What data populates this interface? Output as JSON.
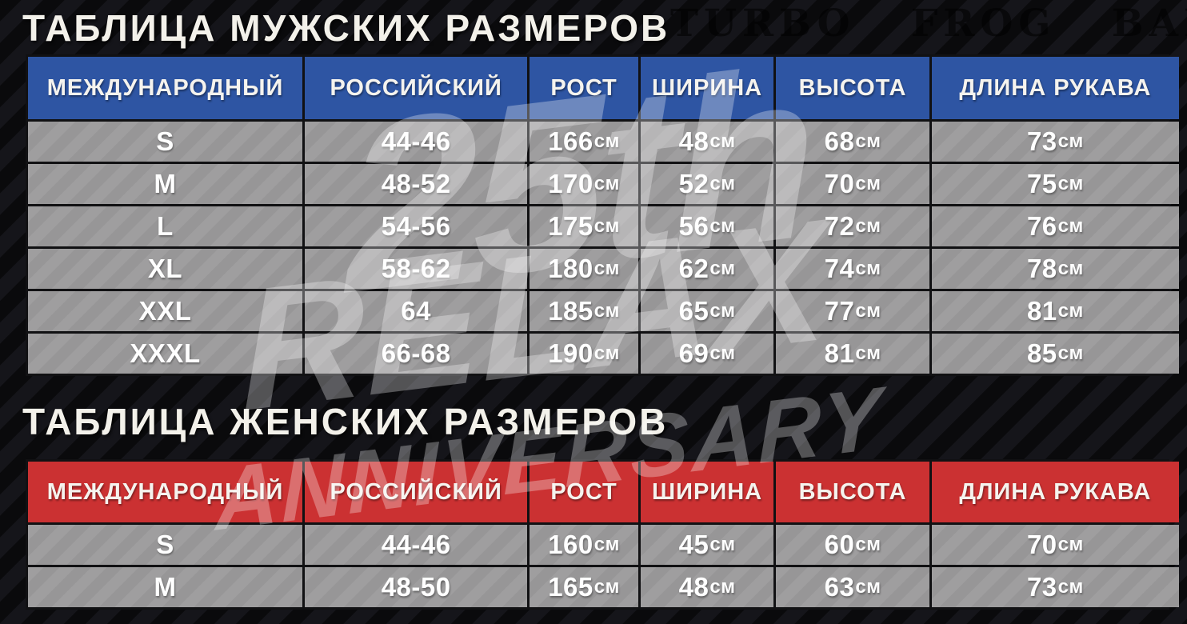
{
  "background": {
    "stencil_text": "TURBO FROG BAN",
    "base_color": "#0a0a0c",
    "stripe_color": "#15151a"
  },
  "watermark": {
    "line1": "25th",
    "line2": "RELAX",
    "line3": "ANNIVERSARY",
    "color": "#ffffff"
  },
  "colors": {
    "men_header_bg": "#2e55a3",
    "women_header_bg": "#cb3132",
    "row_bg": "#9a999a",
    "border": "#111113",
    "title_text": "#f3f1ea",
    "cell_text": "#ffffff"
  },
  "unit_suffix": "см",
  "tables": [
    {
      "id": "men",
      "title": "ТАБЛИЦА МУЖСКИХ РАЗМЕРОВ",
      "accent": "#2e55a3",
      "columns": [
        "МЕЖДУНАРОДНЫЙ",
        "РОССИЙСКИЙ",
        "РОСТ",
        "ШИРИНА",
        "ВЫСОТА",
        "ДЛИНА РУКАВА"
      ],
      "rows": [
        [
          "S",
          "44-46",
          "166см",
          "48см",
          "68см",
          "73см"
        ],
        [
          "M",
          "48-52",
          "170см",
          "52см",
          "70см",
          "75см"
        ],
        [
          "L",
          "54-56",
          "175см",
          "56см",
          "72см",
          "76см"
        ],
        [
          "XL",
          "58-62",
          "180см",
          "62см",
          "74см",
          "78см"
        ],
        [
          "XXL",
          "64",
          "185см",
          "65см",
          "77см",
          "81см"
        ],
        [
          "XXXL",
          "66-68",
          "190см",
          "69см",
          "81см",
          "85см"
        ]
      ]
    },
    {
      "id": "women",
      "title": "ТАБЛИЦА ЖЕНСКИХ РАЗМЕРОВ",
      "accent": "#cb3132",
      "columns": [
        "МЕЖДУНАРОДНЫЙ",
        "РОССИЙСКИЙ",
        "РОСТ",
        "ШИРИНА",
        "ВЫСОТА",
        "ДЛИНА РУКАВА"
      ],
      "rows": [
        [
          "S",
          "44-46",
          "160см",
          "45см",
          "60см",
          "70см"
        ],
        [
          "M",
          "48-50",
          "165см",
          "48см",
          "63см",
          "73см"
        ]
      ]
    }
  ]
}
